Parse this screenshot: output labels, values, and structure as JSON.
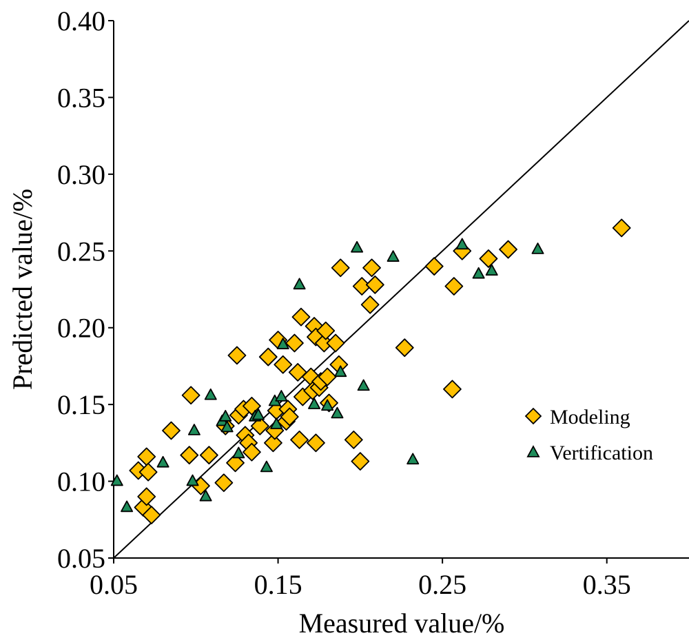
{
  "chart_data": {
    "type": "scatter",
    "title": "",
    "xlabel": "Measured value/%",
    "ylabel": "Predicted value/%",
    "xlim": [
      0.05,
      0.4
    ],
    "ylim": [
      0.05,
      0.4
    ],
    "x_ticks": [
      "0.05",
      "0.15",
      "0.25",
      "0.35"
    ],
    "x_tick_values": [
      0.05,
      0.15,
      0.25,
      0.35
    ],
    "y_ticks": [
      "0.05",
      "0.10",
      "0.15",
      "0.20",
      "0.25",
      "0.30",
      "0.35",
      "0.40"
    ],
    "y_tick_values": [
      0.05,
      0.1,
      0.15,
      0.2,
      0.25,
      0.3,
      0.35,
      0.4
    ],
    "reference_line": {
      "from": [
        0.05,
        0.05
      ],
      "to": [
        0.4,
        0.4
      ]
    },
    "grid": false,
    "legend_position": "right",
    "series": [
      {
        "name": "Modeling",
        "marker": "diamond",
        "color": "#FFC000",
        "points": [
          [
            0.065,
            0.107
          ],
          [
            0.068,
            0.083
          ],
          [
            0.07,
            0.09
          ],
          [
            0.07,
            0.116
          ],
          [
            0.071,
            0.106
          ],
          [
            0.073,
            0.078
          ],
          [
            0.085,
            0.133
          ],
          [
            0.096,
            0.117
          ],
          [
            0.097,
            0.156
          ],
          [
            0.103,
            0.097
          ],
          [
            0.108,
            0.117
          ],
          [
            0.117,
            0.099
          ],
          [
            0.118,
            0.136
          ],
          [
            0.124,
            0.112
          ],
          [
            0.125,
            0.182
          ],
          [
            0.126,
            0.143
          ],
          [
            0.129,
            0.147
          ],
          [
            0.13,
            0.13
          ],
          [
            0.132,
            0.125
          ],
          [
            0.134,
            0.149
          ],
          [
            0.134,
            0.119
          ],
          [
            0.139,
            0.136
          ],
          [
            0.144,
            0.181
          ],
          [
            0.147,
            0.125
          ],
          [
            0.148,
            0.133
          ],
          [
            0.149,
            0.146
          ],
          [
            0.15,
            0.192
          ],
          [
            0.153,
            0.176
          ],
          [
            0.155,
            0.139
          ],
          [
            0.156,
            0.147
          ],
          [
            0.157,
            0.142
          ],
          [
            0.16,
            0.19
          ],
          [
            0.162,
            0.171
          ],
          [
            0.163,
            0.127
          ],
          [
            0.164,
            0.207
          ],
          [
            0.165,
            0.155
          ],
          [
            0.17,
            0.168
          ],
          [
            0.171,
            0.159
          ],
          [
            0.172,
            0.201
          ],
          [
            0.173,
            0.125
          ],
          [
            0.173,
            0.194
          ],
          [
            0.175,
            0.161
          ],
          [
            0.176,
            0.165
          ],
          [
            0.178,
            0.19
          ],
          [
            0.179,
            0.198
          ],
          [
            0.18,
            0.168
          ],
          [
            0.181,
            0.151
          ],
          [
            0.185,
            0.19
          ],
          [
            0.187,
            0.176
          ],
          [
            0.188,
            0.239
          ],
          [
            0.196,
            0.127
          ],
          [
            0.2,
            0.113
          ],
          [
            0.201,
            0.227
          ],
          [
            0.206,
            0.215
          ],
          [
            0.207,
            0.239
          ],
          [
            0.209,
            0.228
          ],
          [
            0.227,
            0.187
          ],
          [
            0.245,
            0.24
          ],
          [
            0.256,
            0.16
          ],
          [
            0.257,
            0.227
          ],
          [
            0.262,
            0.25
          ],
          [
            0.278,
            0.245
          ],
          [
            0.29,
            0.251
          ],
          [
            0.359,
            0.265
          ]
        ]
      },
      {
        "name": "Vertification",
        "marker": "triangle",
        "color": "#1E8C5A",
        "points": [
          [
            0.052,
            0.1
          ],
          [
            0.058,
            0.083
          ],
          [
            0.08,
            0.112
          ],
          [
            0.098,
            0.1
          ],
          [
            0.099,
            0.133
          ],
          [
            0.106,
            0.09
          ],
          [
            0.109,
            0.156
          ],
          [
            0.116,
            0.139
          ],
          [
            0.118,
            0.142
          ],
          [
            0.119,
            0.135
          ],
          [
            0.126,
            0.118
          ],
          [
            0.136,
            0.142
          ],
          [
            0.138,
            0.143
          ],
          [
            0.143,
            0.109
          ],
          [
            0.148,
            0.152
          ],
          [
            0.149,
            0.137
          ],
          [
            0.152,
            0.155
          ],
          [
            0.153,
            0.189
          ],
          [
            0.163,
            0.228
          ],
          [
            0.172,
            0.15
          ],
          [
            0.18,
            0.149
          ],
          [
            0.186,
            0.144
          ],
          [
            0.188,
            0.171
          ],
          [
            0.198,
            0.252
          ],
          [
            0.202,
            0.162
          ],
          [
            0.22,
            0.246
          ],
          [
            0.232,
            0.114
          ],
          [
            0.262,
            0.254
          ],
          [
            0.272,
            0.235
          ],
          [
            0.28,
            0.237
          ],
          [
            0.308,
            0.251
          ]
        ]
      }
    ]
  }
}
